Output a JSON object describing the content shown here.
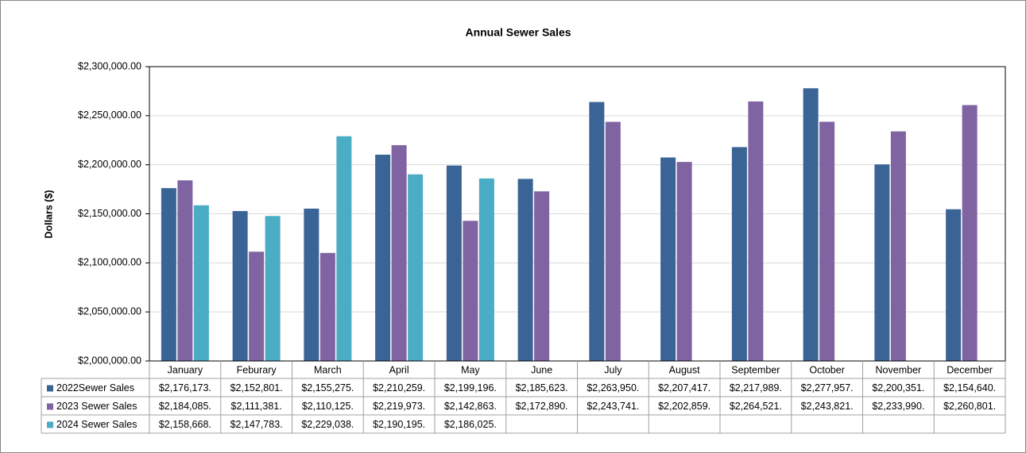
{
  "chart_data": {
    "type": "bar",
    "title": "Annual Sewer Sales",
    "y_label": "Dollars ($)",
    "categories": [
      "January",
      "Feburary",
      "March",
      "April",
      "May",
      "June",
      "July",
      "August",
      "September",
      "October",
      "November",
      "December"
    ],
    "series": [
      {
        "name": "2022Sewer Sales",
        "color": "#3a6496",
        "values": [
          2176173,
          2152801,
          2155275,
          2210259,
          2199196,
          2185623,
          2263950,
          2207417,
          2217989,
          2277957,
          2200351,
          2154640
        ],
        "value_labels": [
          "$2,176,173.",
          "$2,152,801.",
          "$2,155,275.",
          "$2,210,259.",
          "$2,199,196.",
          "$2,185,623.",
          "$2,263,950.",
          "$2,207,417.",
          "$2,217,989.",
          "$2,277,957.",
          "$2,200,351.",
          "$2,154,640."
        ]
      },
      {
        "name": "2023 Sewer Sales",
        "color": "#8064a2",
        "values": [
          2184085,
          2111381,
          2110125,
          2219973,
          2142863,
          2172890,
          2243741,
          2202859,
          2264521,
          2243821,
          2233990,
          2260801
        ],
        "value_labels": [
          "$2,184,085.",
          "$2,111,381.",
          "$2,110,125.",
          "$2,219,973.",
          "$2,142,863.",
          "$2,172,890.",
          "$2,243,741.",
          "$2,202,859.",
          "$2,264,521.",
          "$2,243,821.",
          "$2,233,990.",
          "$2,260,801."
        ]
      },
      {
        "name": "2024 Sewer Sales",
        "color": "#4bacc6",
        "values": [
          2158668,
          2147783,
          2229038,
          2190195,
          2186025,
          null,
          null,
          null,
          null,
          null,
          null,
          null
        ],
        "value_labels": [
          "$2,158,668.",
          "$2,147,783.",
          "$2,229,038.",
          "$2,190,195.",
          "$2,186,025.",
          null,
          null,
          null,
          null,
          null,
          null,
          null
        ]
      }
    ],
    "ylim": [
      2000000,
      2300000
    ],
    "yticks": [
      {
        "value": 2000000,
        "label": "$2,000,000.00"
      },
      {
        "value": 2050000,
        "label": "$2,050,000.00"
      },
      {
        "value": 2100000,
        "label": "$2,100,000.00"
      },
      {
        "value": 2150000,
        "label": "$2,150,000.00"
      },
      {
        "value": 2200000,
        "label": "$2,200,000.00"
      },
      {
        "value": 2250000,
        "label": "$2,250,000.00"
      },
      {
        "value": 2300000,
        "label": "$2,300,000.00"
      }
    ],
    "grid": true
  }
}
